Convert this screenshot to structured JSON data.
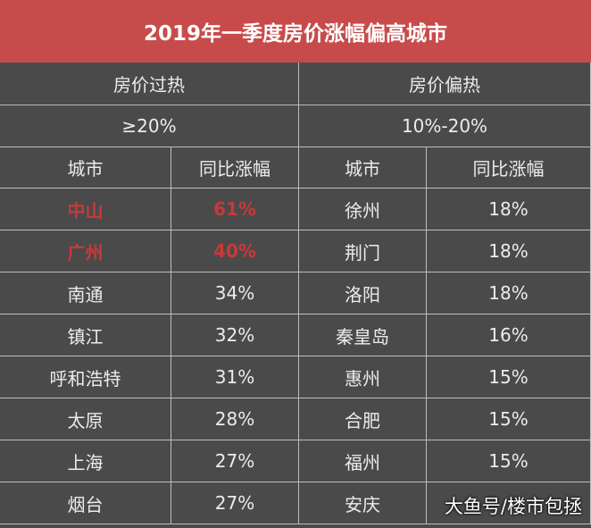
{
  "header": {
    "title": "2019年一季度房价涨幅偏高城市"
  },
  "highlight_color": "#c8393a",
  "groups": [
    {
      "name": "房价过热",
      "range": "≥20%",
      "columns": [
        "城市",
        "同比涨幅"
      ],
      "rows": [
        {
          "city": "中山",
          "change": "61%",
          "highlight": true
        },
        {
          "city": "广州",
          "change": "40%",
          "highlight": true
        },
        {
          "city": "南通",
          "change": "34%"
        },
        {
          "city": "镇江",
          "change": "32%"
        },
        {
          "city": "呼和浩特",
          "change": "31%"
        },
        {
          "city": "太原",
          "change": "28%"
        },
        {
          "city": "上海",
          "change": "27%"
        },
        {
          "city": "烟台",
          "change": "27%"
        }
      ]
    },
    {
      "name": "房价偏热",
      "range": "10%-20%",
      "columns": [
        "城市",
        "同比涨幅"
      ],
      "rows": [
        {
          "city": "徐州",
          "change": "18%"
        },
        {
          "city": "荆门",
          "change": "18%"
        },
        {
          "city": "洛阳",
          "change": "18%"
        },
        {
          "city": "秦皇岛",
          "change": "16%"
        },
        {
          "city": "惠州",
          "change": "15%"
        },
        {
          "city": "合肥",
          "change": "15%"
        },
        {
          "city": "福州",
          "change": "15%"
        },
        {
          "city": "安庆"
        }
      ]
    }
  ],
  "watermark": "大鱼号/楼市包拯"
}
